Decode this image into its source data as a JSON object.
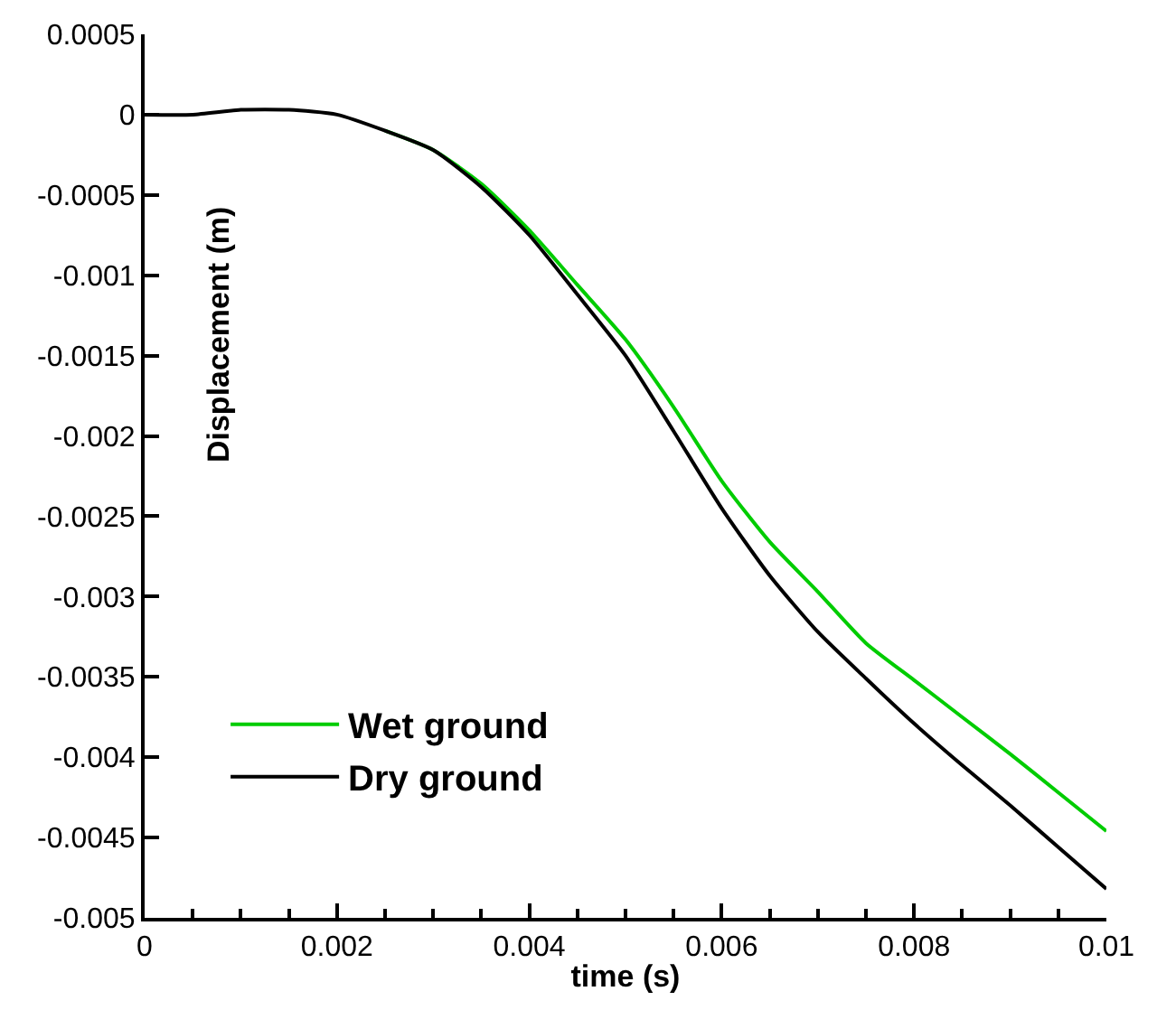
{
  "chart_data": {
    "type": "line",
    "xlabel": "time (s)",
    "ylabel": "Displacement (m)",
    "x": [
      0,
      0.0005,
      0.001,
      0.0015,
      0.002,
      0.0025,
      0.003,
      0.0035,
      0.004,
      0.0045,
      0.005,
      0.0055,
      0.006,
      0.0065,
      0.007,
      0.0075,
      0.008,
      0.0085,
      0.009,
      0.0095,
      0.01
    ],
    "series": [
      {
        "name": "Wet ground",
        "color": "#00cc00",
        "values": [
          null,
          null,
          null,
          null,
          null,
          -0.0001,
          -0.00022,
          -0.00043,
          -0.00072,
          -0.00106,
          -0.0014,
          -0.00182,
          -0.00228,
          -0.00266,
          -0.00297,
          -0.00329,
          -0.00352,
          -0.00375,
          -0.00398,
          -0.00422,
          -0.00446
        ]
      },
      {
        "name": "Dry ground",
        "color": "#000000",
        "values": [
          0,
          0,
          3e-05,
          3e-05,
          0,
          -0.0001,
          -0.00022,
          -0.00045,
          -0.00075,
          -0.00112,
          -0.0015,
          -0.00197,
          -0.00245,
          -0.00287,
          -0.00322,
          -0.00351,
          -0.00379,
          -0.00405,
          -0.0043,
          -0.00456,
          -0.00482
        ]
      }
    ],
    "xlim": [
      0,
      0.01
    ],
    "xticks": [
      0,
      {
        "value": 0.0005,
        "label": null
      },
      {
        "value": 0.001,
        "label": null
      },
      {
        "value": 0.0015,
        "label": null
      },
      0.002,
      {
        "value": 0.0025,
        "label": null
      },
      {
        "value": 0.003,
        "label": null
      },
      {
        "value": 0.0035,
        "label": null
      },
      0.004,
      {
        "value": 0.0045,
        "label": null
      },
      {
        "value": 0.005,
        "label": null
      },
      {
        "value": 0.0055,
        "label": null
      },
      0.006,
      {
        "value": 0.0065,
        "label": null
      },
      {
        "value": 0.007,
        "label": null
      },
      {
        "value": 0.0075,
        "label": null
      },
      0.008,
      {
        "value": 0.0085,
        "label": null
      },
      {
        "value": 0.009,
        "label": null
      },
      {
        "value": 0.0095,
        "label": null
      },
      0.01
    ],
    "ylim": [
      -0.005,
      0.0005
    ],
    "yticks": [
      0.0005,
      0,
      -0.0005,
      -0.001,
      -0.0015,
      -0.002,
      -0.0025,
      -0.003,
      -0.0035,
      -0.004,
      -0.0045,
      -0.005
    ],
    "legend": "bottom left",
    "marker": "none",
    "line_style": "solid"
  }
}
